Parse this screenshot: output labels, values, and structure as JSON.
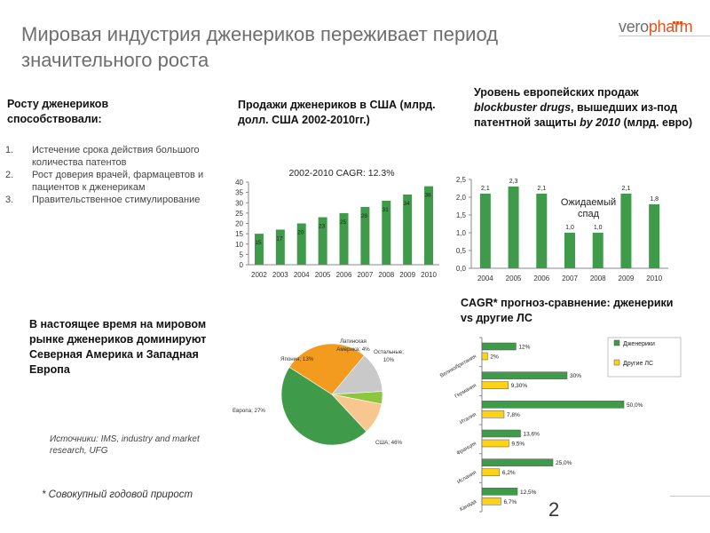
{
  "title": "Мировая индустрия дженериков переживает период значительного роста",
  "logo": {
    "part1": "vero",
    "part2": "pharm"
  },
  "drivers": {
    "heading": "Росту дженериков способствовали:",
    "items": [
      {
        "num": "1.",
        "text": "Истечение срока действия большого количества патентов"
      },
      {
        "num": "2.",
        "text": "Рост доверия врачей, фармацевтов и пациентов к дженерикам"
      },
      {
        "num": "3.",
        "text": "Правительственное стимулирование"
      }
    ]
  },
  "us_heading": "Продажи дженериков в США (млрд. долл. США 2002-2010гг.)",
  "eu_heading": {
    "part1": "Уровень европейских продаж ",
    "italic1": "blockbuster drugs",
    "part2": ", вышедших из-под патентной защиты ",
    "italic2": "by 2010",
    "part3": " (млрд. евро)"
  },
  "cagr_heading": "CAGR* прогноз-сравнение: дженерики vs другие ЛС",
  "world_heading": "В настоящее время на мировом рынке дженериков доминируют Северная Америка и Западная Европа",
  "sources": "Источники: IMS, industry and market research, UFG",
  "footnote": "* Совокупный годовой прирост",
  "page_number": "2",
  "colors": {
    "green": "#3f9a4a",
    "orange": "#f29b1e",
    "peach": "#f8c790",
    "lime": "#8cc63f",
    "silver": "#c9c9c9",
    "yellow": "#ffd21a"
  },
  "chart_data": [
    {
      "id": "us",
      "type": "bar",
      "title": "2002-2010 CAGR: 12.3%",
      "categories": [
        "2002",
        "2003",
        "2004",
        "2005",
        "2006",
        "2007",
        "2008",
        "2009",
        "2010"
      ],
      "values": [
        15,
        17,
        20,
        23,
        25,
        28,
        31,
        34,
        38
      ],
      "labels": [
        "15",
        "17",
        "20",
        "23",
        "25",
        "28",
        "31",
        "34",
        "38"
      ],
      "yticks": [
        "0",
        "5",
        "10",
        "15",
        "20",
        "25",
        "30",
        "35",
        "40"
      ],
      "ylim": [
        0,
        40
      ]
    },
    {
      "id": "eu",
      "type": "bar",
      "annotation": "Ожидаемый спад",
      "categories": [
        "2004",
        "2005",
        "2006",
        "2007",
        "2008",
        "2009",
        "2010"
      ],
      "values": [
        2.1,
        2.3,
        2.1,
        1.0,
        1.0,
        2.1,
        1.8
      ],
      "labels": [
        "2,1",
        "2,3",
        "2,1",
        "1,0",
        "1,0",
        "2,1",
        "1,8"
      ],
      "yticks": [
        "0,0",
        "0,5",
        "1,0",
        "1,5",
        "2,0",
        "2,5"
      ],
      "ylim": [
        0,
        2.5
      ]
    },
    {
      "id": "world",
      "type": "pie",
      "slices": [
        {
          "label": "США; 46%",
          "value": 46
        },
        {
          "label": "Европа; 27%",
          "value": 27
        },
        {
          "label": "Япония; 13%",
          "value": 13
        },
        {
          "label": "Латинская Америка; 4%",
          "value": 4
        },
        {
          "label": "Остальные; 10%",
          "value": 10
        }
      ]
    },
    {
      "id": "cagr",
      "type": "bar",
      "orientation": "horizontal",
      "categories": [
        "Великобритания",
        "Германия",
        "Италия",
        "Франция",
        "Испания",
        "Канада"
      ],
      "series": [
        {
          "name": "Дженерики",
          "values": [
            12,
            30,
            50,
            13.6,
            25,
            12.5
          ],
          "labels": [
            "12%",
            "30%",
            "50,0%",
            "13,6%",
            "25,0%",
            "12,5%"
          ]
        },
        {
          "name": "Другие ЛС",
          "values": [
            2,
            9.3,
            7.8,
            9.5,
            6.2,
            6.7
          ],
          "labels": [
            "2%",
            "9,30%",
            "7,8%",
            "9,5%",
            "6,2%",
            "6,7%"
          ]
        }
      ]
    }
  ]
}
